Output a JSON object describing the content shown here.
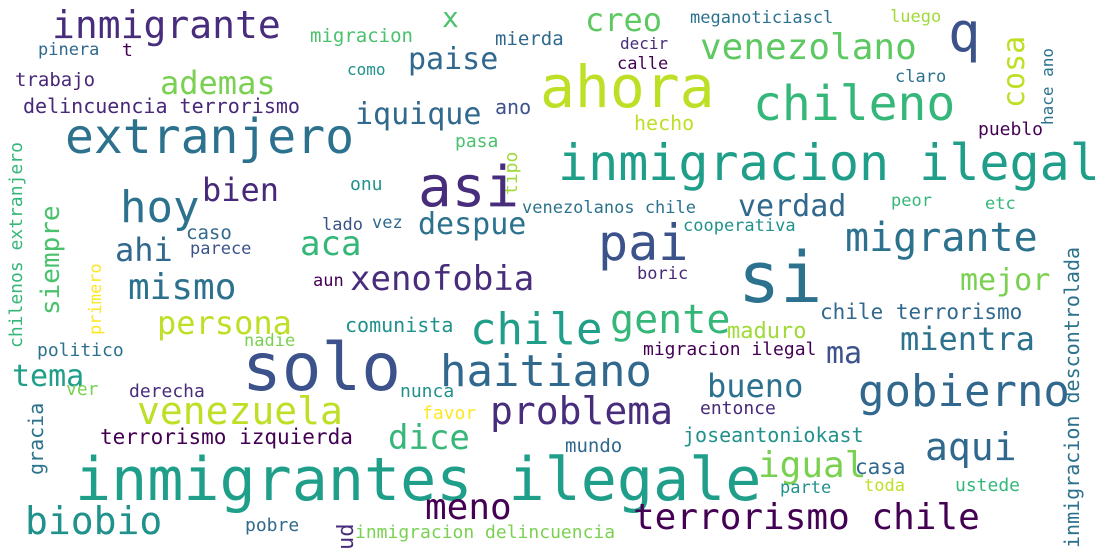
{
  "words": [
    {
      "text": "inmigrante",
      "color": "#472d7b"
    },
    {
      "text": "x",
      "color": "#4ac16d"
    },
    {
      "text": "creo",
      "color": "#5ec962"
    },
    {
      "text": "meganoticiascl",
      "color": "#2c728e"
    },
    {
      "text": "luego",
      "color": "#a0da39"
    },
    {
      "text": "q",
      "color": "#3b528b"
    },
    {
      "text": "migracion",
      "color": "#4ac16d"
    },
    {
      "text": "mierda",
      "color": "#31688e"
    },
    {
      "text": "decir",
      "color": "#472d7b"
    },
    {
      "text": "venezolano",
      "color": "#5ec962"
    },
    {
      "text": "cosa",
      "color": "#bddf26"
    },
    {
      "text": "hace ano",
      "color": "#2c728e"
    },
    {
      "text": "pinera",
      "color": "#31688e"
    },
    {
      "text": "t",
      "color": "#440154"
    },
    {
      "text": "paise",
      "color": "#31688e"
    },
    {
      "text": "calle",
      "color": "#440154"
    },
    {
      "text": "como",
      "color": "#21918c"
    },
    {
      "text": "claro",
      "color": "#2c728e"
    },
    {
      "text": "trabajo",
      "color": "#482878"
    },
    {
      "text": "ademas",
      "color": "#7ad151"
    },
    {
      "text": "ahora",
      "color": "#bddf26"
    },
    {
      "text": "chileno",
      "color": "#35b779"
    },
    {
      "text": "delincuencia terrorismo",
      "color": "#482878"
    },
    {
      "text": "iquique",
      "color": "#31688e"
    },
    {
      "text": "ano",
      "color": "#3b528b"
    },
    {
      "text": "hecho",
      "color": "#bddf26"
    },
    {
      "text": "pueblo",
      "color": "#440154"
    },
    {
      "text": "extranjero",
      "color": "#2c728e"
    },
    {
      "text": "pasa",
      "color": "#4ac16d"
    },
    {
      "text": "tipo",
      "color": "#a0da39"
    },
    {
      "text": "inmigracion ilegal",
      "color": "#1f9e89"
    },
    {
      "text": "chilenos extranjero",
      "color": "#35b779"
    },
    {
      "text": "siempre",
      "color": "#4ac16d"
    },
    {
      "text": "hoy",
      "color": "#2c728e"
    },
    {
      "text": "bien",
      "color": "#482878"
    },
    {
      "text": "asi",
      "color": "#472d7b"
    },
    {
      "text": "onu",
      "color": "#21918c"
    },
    {
      "text": "venezolanos chile",
      "color": "#2c728e"
    },
    {
      "text": "peor",
      "color": "#35b779"
    },
    {
      "text": "verdad",
      "color": "#31688e"
    },
    {
      "text": "etc",
      "color": "#35b779"
    },
    {
      "text": "inmigracion descontrolada",
      "color": "#2c728e"
    },
    {
      "text": "caso",
      "color": "#31688e"
    },
    {
      "text": "lado",
      "color": "#3b528b"
    },
    {
      "text": "vez",
      "color": "#31688e"
    },
    {
      "text": "despue",
      "color": "#2c728e"
    },
    {
      "text": "aca",
      "color": "#35b779"
    },
    {
      "text": "pai",
      "color": "#3b528b"
    },
    {
      "text": "cooperativa",
      "color": "#21918c"
    },
    {
      "text": "migrante",
      "color": "#2c728e"
    },
    {
      "text": "ahi",
      "color": "#31688e"
    },
    {
      "text": "parece",
      "color": "#3b528b"
    },
    {
      "text": "primero",
      "color": "#fde725"
    },
    {
      "text": "si",
      "color": "#2c728e"
    },
    {
      "text": "boric",
      "color": "#482878"
    },
    {
      "text": "mismo",
      "color": "#2c728e"
    },
    {
      "text": "aun",
      "color": "#440154"
    },
    {
      "text": "xenofobia",
      "color": "#472d7b"
    },
    {
      "text": "mejor",
      "color": "#7ad151"
    },
    {
      "text": "gente",
      "color": "#35b779"
    },
    {
      "text": "chile",
      "color": "#1f9e89"
    },
    {
      "text": "persona",
      "color": "#bddf26"
    },
    {
      "text": "chile terrorismo",
      "color": "#31688e"
    },
    {
      "text": "comunista",
      "color": "#21918c"
    },
    {
      "text": "maduro",
      "color": "#a0da39"
    },
    {
      "text": "nadie",
      "color": "#7ad151"
    },
    {
      "text": "mientra",
      "color": "#2c728e"
    },
    {
      "text": "politico",
      "color": "#2c728e"
    },
    {
      "text": "migracion ilegal",
      "color": "#440154"
    },
    {
      "text": "ma",
      "color": "#3b528b"
    },
    {
      "text": "solo",
      "color": "#3b528b"
    },
    {
      "text": "haitiano",
      "color": "#31688e"
    },
    {
      "text": "tema",
      "color": "#1f9e89"
    },
    {
      "text": "ver",
      "color": "#7ad151"
    },
    {
      "text": "derecha",
      "color": "#472d7b"
    },
    {
      "text": "nunca",
      "color": "#21918c"
    },
    {
      "text": "bueno",
      "color": "#2c728e"
    },
    {
      "text": "gobierno",
      "color": "#31688e"
    },
    {
      "text": "venezuela",
      "color": "#bddf26"
    },
    {
      "text": "problema",
      "color": "#472d7b"
    },
    {
      "text": "favor",
      "color": "#fde725"
    },
    {
      "text": "entonce",
      "color": "#482878"
    },
    {
      "text": "gracia",
      "color": "#2c728e"
    },
    {
      "text": "terrorismo izquierda",
      "color": "#440154"
    },
    {
      "text": "dice",
      "color": "#35b779"
    },
    {
      "text": "joseantoniokast",
      "color": "#21918c"
    },
    {
      "text": "mundo",
      "color": "#31688e"
    },
    {
      "text": "aqui",
      "color": "#31688e"
    },
    {
      "text": "igual",
      "color": "#7ad151"
    },
    {
      "text": "inmigrantes ilegale",
      "color": "#1f9e89"
    },
    {
      "text": "casa",
      "color": "#31688e"
    },
    {
      "text": "parte",
      "color": "#21918c"
    },
    {
      "text": "toda",
      "color": "#bddf26"
    },
    {
      "text": "ustede",
      "color": "#35b779"
    },
    {
      "text": "meno",
      "color": "#440154"
    },
    {
      "text": "biobio",
      "color": "#21918c"
    },
    {
      "text": "terrorismo chile",
      "color": "#440154"
    },
    {
      "text": "pobre",
      "color": "#31688e"
    },
    {
      "text": "ud",
      "color": "#472d7b"
    },
    {
      "text": "inmigracion delincuencia",
      "color": "#7ad151"
    }
  ]
}
